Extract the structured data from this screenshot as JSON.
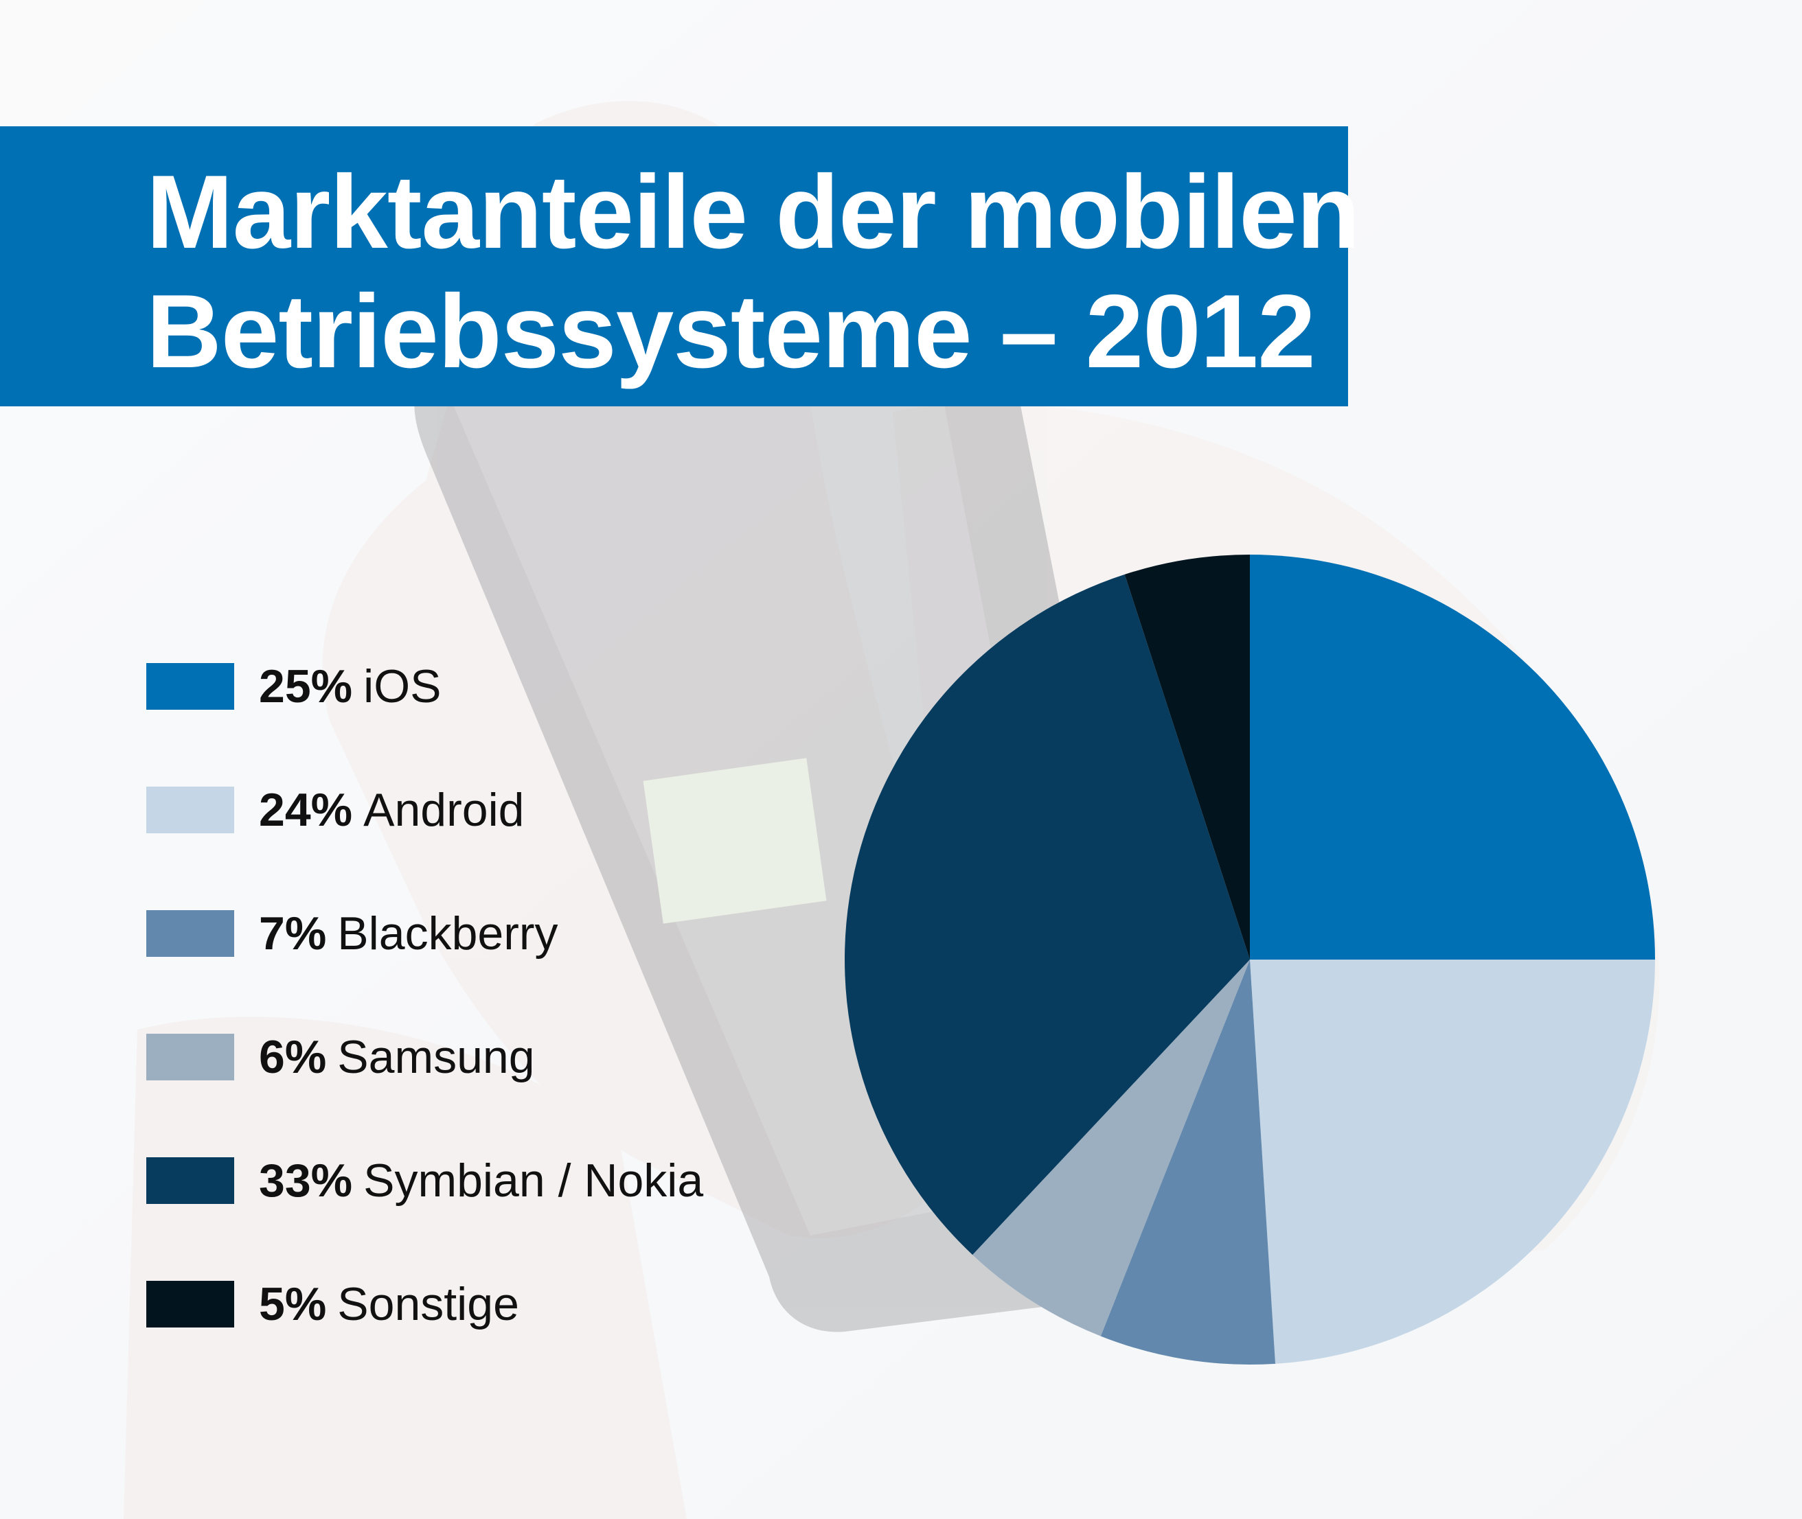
{
  "header": {
    "title_line1": "Marktanteile der mobilen",
    "title_line2": "Betriebssysteme – 2012",
    "background_color": "#0070b4"
  },
  "legend": [
    {
      "percent": "25%",
      "label": "iOS",
      "color": "#0070b4"
    },
    {
      "percent": "24%",
      "label": "Android",
      "color": "#c5d7e6"
    },
    {
      "percent": "7%",
      "label": "Blackberry",
      "color": "#6289ad"
    },
    {
      "percent": "6%",
      "label": "Samsung",
      "color": "#9cafc1"
    },
    {
      "percent": "33%",
      "label": "Symbian / Nokia",
      "color": "#073c5f"
    },
    {
      "percent": "5%",
      "label": "Sonstige",
      "color": "#02151f"
    }
  ],
  "chart_data": {
    "type": "pie",
    "start_angle": "12 o'clock",
    "direction": "clockwise",
    "slices": [
      {
        "label": "iOS",
        "value": 25,
        "color": "#0070b4"
      },
      {
        "label": "Android",
        "value": 24,
        "color": "#c5d7e6"
      },
      {
        "label": "Blackberry",
        "value": 7,
        "color": "#6289ad"
      },
      {
        "label": "Samsung",
        "value": 6,
        "color": "#9cafc1"
      },
      {
        "label": "Symbian / Nokia",
        "value": 33,
        "color": "#073c5f"
      },
      {
        "label": "Sonstige",
        "value": 5,
        "color": "#02151f"
      }
    ]
  }
}
